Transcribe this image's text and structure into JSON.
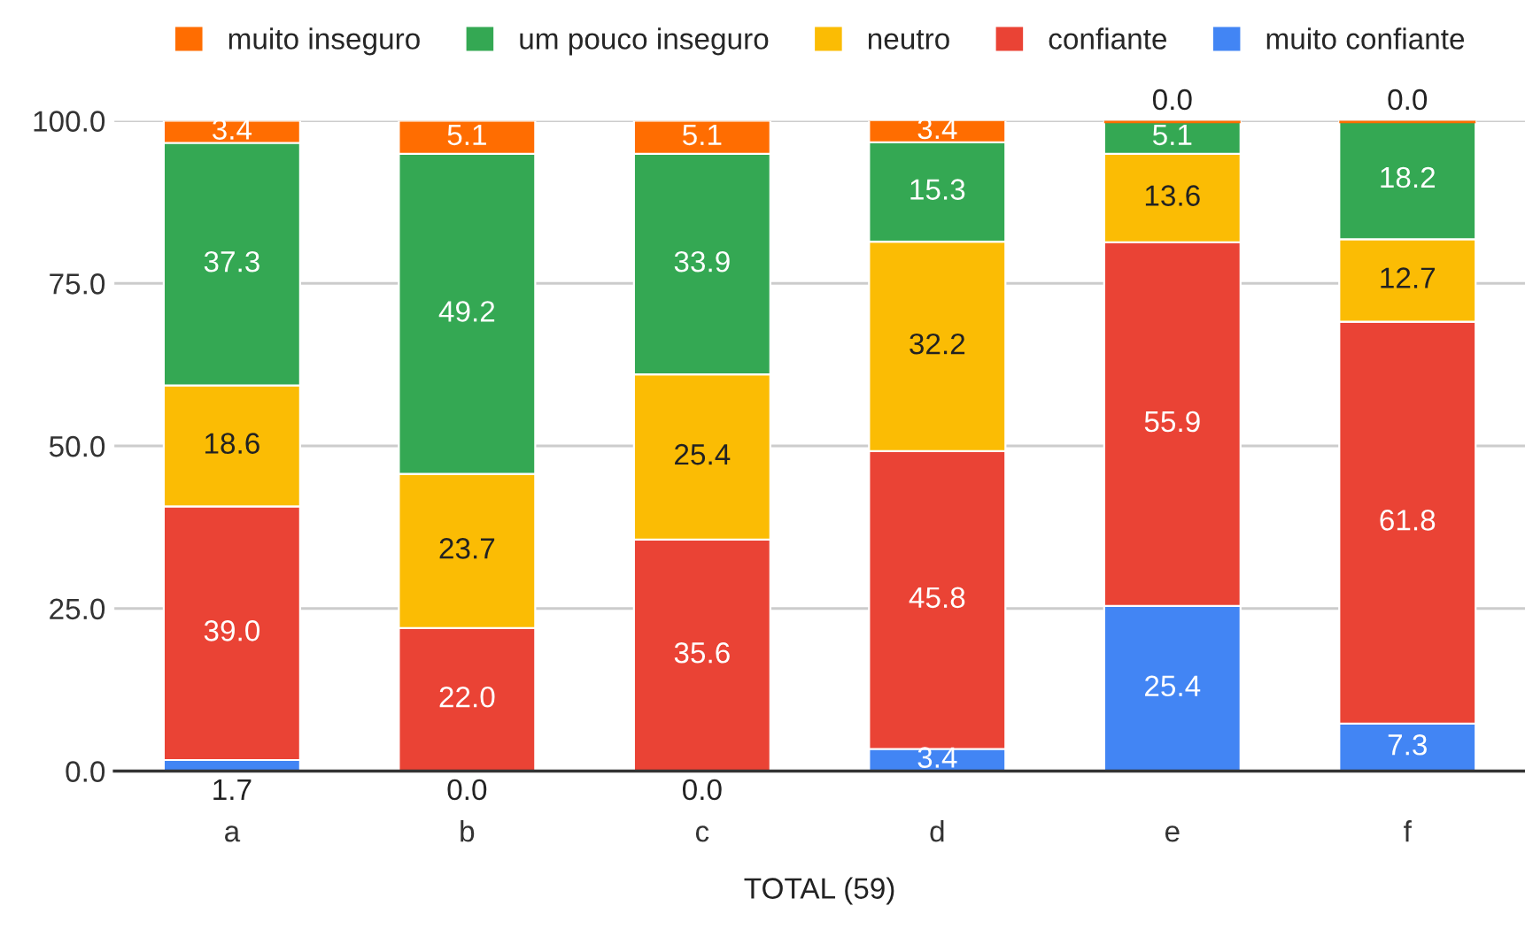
{
  "chart_data": {
    "type": "bar",
    "stacked": true,
    "xlabel": "TOTAL (59)",
    "categories": [
      "a",
      "b",
      "c",
      "d",
      "e",
      "f"
    ],
    "series": [
      {
        "name": "muito confiante",
        "color": "#4285f4",
        "values": [
          1.7,
          0.0,
          0.0,
          3.4,
          25.4,
          7.3
        ],
        "value_labels": [
          "1.7",
          "0.0",
          "0.0",
          "3.4",
          "25.4",
          "7.3"
        ]
      },
      {
        "name": "confiante",
        "color": "#ea4335",
        "values": [
          39.0,
          22.0,
          35.6,
          45.8,
          55.9,
          61.8
        ],
        "value_labels": [
          "39.0",
          "22.0",
          "35.6",
          "45.8",
          "55.9",
          "61.8"
        ]
      },
      {
        "name": "neutro",
        "color": "#fbbc04",
        "values": [
          18.6,
          23.7,
          25.4,
          32.2,
          13.6,
          12.7
        ],
        "value_labels": [
          "18.6",
          "23.7",
          "25.4",
          "32.2",
          "13.6",
          "12.7"
        ]
      },
      {
        "name": "um pouco inseguro",
        "color": "#34a853",
        "values": [
          37.3,
          49.2,
          33.9,
          15.3,
          5.1,
          18.2
        ],
        "value_labels": [
          "37.3",
          "49.2",
          "33.9",
          "15.3",
          "5.1",
          "18.2"
        ]
      },
      {
        "name": "muito inseguro",
        "color": "#ff6d01",
        "values": [
          3.4,
          5.1,
          5.1,
          3.4,
          0.0,
          0.0
        ],
        "value_labels": [
          "3.4",
          "5.1",
          "5.1",
          "3.4",
          "0.0",
          "0.0"
        ]
      }
    ],
    "ylim": [
      0,
      100
    ],
    "yticks": [
      {
        "value": 0,
        "label": "0.0"
      },
      {
        "value": 25,
        "label": "25.0"
      },
      {
        "value": 50,
        "label": "50.0"
      },
      {
        "value": 75,
        "label": "75.0"
      },
      {
        "value": 100,
        "label": "100.0"
      }
    ],
    "grid": "y",
    "legend": "top"
  }
}
